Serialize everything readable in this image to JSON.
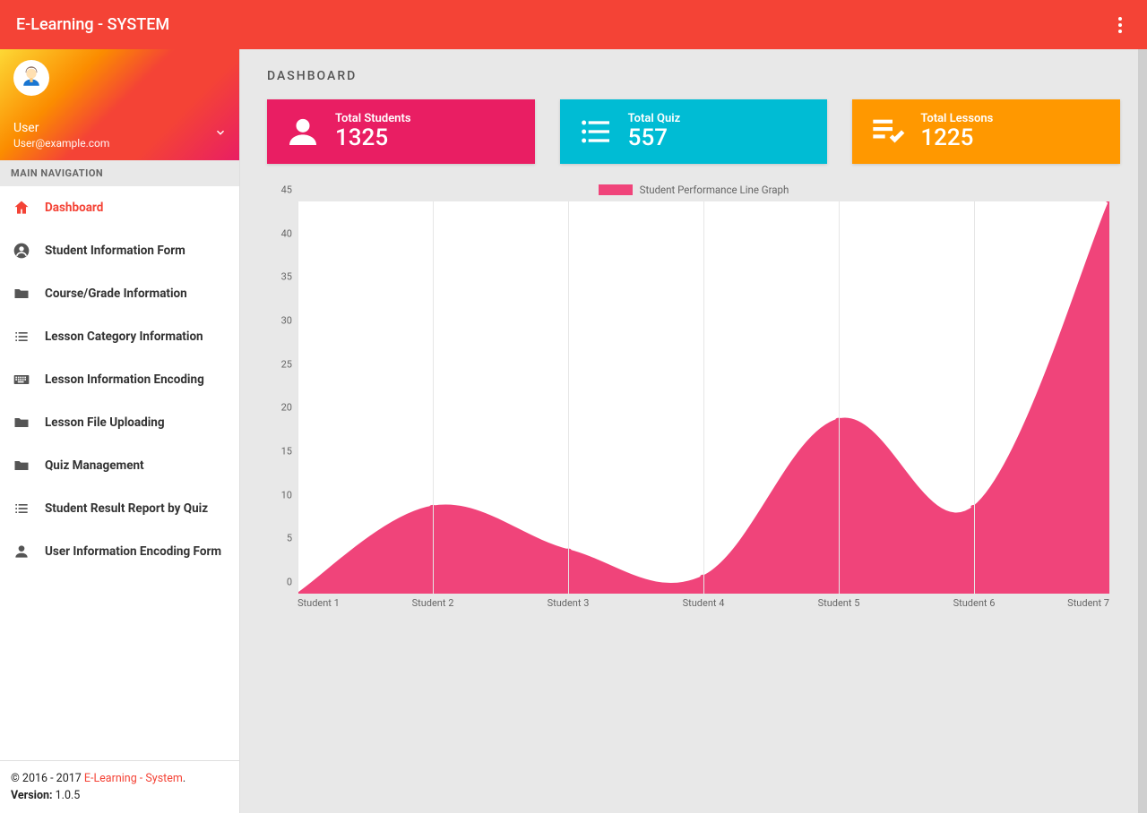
{
  "app_title": "E-Learning - SYSTEM",
  "user": {
    "name": "User",
    "email": "User@example.com"
  },
  "nav_header": "MAIN NAVIGATION",
  "nav_items": [
    {
      "label": "Dashboard",
      "icon": "home",
      "active": true
    },
    {
      "label": "Student Information Form",
      "icon": "person-circle",
      "active": false
    },
    {
      "label": "Course/Grade Information",
      "icon": "folder",
      "active": false
    },
    {
      "label": "Lesson Category Information",
      "icon": "list",
      "active": false
    },
    {
      "label": "Lesson Information Encoding",
      "icon": "keyboard",
      "active": false
    },
    {
      "label": "Lesson File Uploading",
      "icon": "folder",
      "active": false
    },
    {
      "label": "Quiz Management",
      "icon": "folder",
      "active": false
    },
    {
      "label": "Student Result Report by Quiz",
      "icon": "list",
      "active": false
    },
    {
      "label": "User Information Encoding Form",
      "icon": "person",
      "active": false
    }
  ],
  "footer": {
    "copyright_prefix": "© 2016 - 2017 ",
    "link_text": "E-Learning - System",
    "version_label": "Version:",
    "version_value": "1.0.5"
  },
  "page_title": "DASHBOARD",
  "cards": [
    {
      "label": "Total Students",
      "value": "1325",
      "bg": "#e91e63",
      "icon": "person"
    },
    {
      "label": "Total Quiz",
      "value": "557",
      "bg": "#00bcd4",
      "icon": "list"
    },
    {
      "label": "Total Lessons",
      "value": "1225",
      "bg": "#ff9800",
      "icon": "playlist-check"
    }
  ],
  "chart": {
    "legend_label": "Student Performance Line Graph",
    "series_color": "#f0447a",
    "point_color": "#f0447a",
    "fill_opacity": 1,
    "background_color": "#ffffff",
    "grid_color": "#e6e6e6",
    "ylim": [
      0,
      45
    ],
    "ytick_step": 5,
    "x_labels": [
      "Student 1",
      "Student 2",
      "Student 3",
      "Student 4",
      "Student 5",
      "Student 6",
      "Student 7"
    ],
    "values": [
      0,
      10,
      5,
      2,
      20,
      10,
      45
    ],
    "line_width": 2,
    "curve": "smooth",
    "tick_fontsize": 11,
    "legend_fontsize": 11.5
  }
}
